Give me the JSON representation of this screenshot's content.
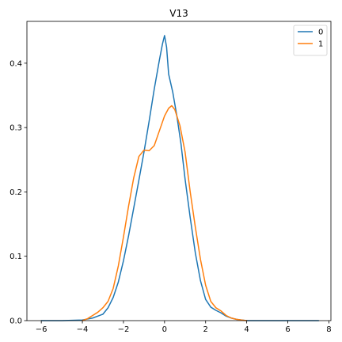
{
  "chart_data": {
    "type": "line",
    "title": "V13",
    "xlabel": "",
    "ylabel": "",
    "xlim": [
      -6.7,
      8.1
    ],
    "ylim": [
      0.0,
      0.465
    ],
    "x_ticks": [
      -6,
      -4,
      -2,
      0,
      2,
      4,
      6,
      8
    ],
    "x_tick_labels": [
      "−6",
      "−4",
      "−2",
      "0",
      "2",
      "4",
      "6",
      "8"
    ],
    "y_ticks": [
      0.0,
      0.1,
      0.2,
      0.3,
      0.4
    ],
    "y_tick_labels": [
      "0.0",
      "0.1",
      "0.2",
      "0.3",
      "0.4"
    ],
    "grid": false,
    "legend": "top-right",
    "series": [
      {
        "name": "0",
        "color": "#1f77b4",
        "x": [
          -6.0,
          -5.0,
          -4.0,
          -3.5,
          -3.0,
          -2.75,
          -2.5,
          -2.25,
          -2.0,
          -1.75,
          -1.5,
          -1.25,
          -1.0,
          -0.75,
          -0.5,
          -0.25,
          -0.1,
          0.0,
          0.1,
          0.2,
          0.4,
          0.6,
          0.8,
          1.0,
          1.25,
          1.5,
          1.75,
          2.0,
          2.25,
          2.5,
          2.75,
          3.0,
          3.25,
          3.5,
          3.75,
          4.0,
          4.5,
          5.0,
          6.0,
          7.0,
          7.5
        ],
        "y": [
          0.0,
          0.0,
          0.001,
          0.004,
          0.01,
          0.02,
          0.036,
          0.06,
          0.093,
          0.132,
          0.175,
          0.218,
          0.262,
          0.31,
          0.36,
          0.405,
          0.43,
          0.443,
          0.425,
          0.383,
          0.355,
          0.318,
          0.275,
          0.22,
          0.16,
          0.105,
          0.062,
          0.033,
          0.021,
          0.016,
          0.012,
          0.007,
          0.004,
          0.002,
          0.001,
          0.0,
          0.0,
          0.0,
          0.0,
          0.0,
          0.0
        ]
      },
      {
        "name": "1",
        "color": "#ff7f0e",
        "x": [
          -4.0,
          -3.75,
          -3.5,
          -3.25,
          -3.0,
          -2.75,
          -2.5,
          -2.25,
          -2.0,
          -1.75,
          -1.5,
          -1.25,
          -1.0,
          -0.75,
          -0.5,
          -0.25,
          0.0,
          0.2,
          0.35,
          0.5,
          0.75,
          1.0,
          1.25,
          1.5,
          1.75,
          2.0,
          2.25,
          2.5,
          2.75,
          3.0,
          3.25,
          3.5,
          3.75,
          4.0
        ],
        "y": [
          0.0,
          0.003,
          0.008,
          0.013,
          0.02,
          0.03,
          0.05,
          0.085,
          0.13,
          0.178,
          0.222,
          0.255,
          0.265,
          0.264,
          0.272,
          0.295,
          0.318,
          0.33,
          0.334,
          0.328,
          0.303,
          0.262,
          0.2,
          0.145,
          0.095,
          0.055,
          0.03,
          0.02,
          0.015,
          0.008,
          0.004,
          0.002,
          0.001,
          0.0
        ]
      }
    ]
  }
}
